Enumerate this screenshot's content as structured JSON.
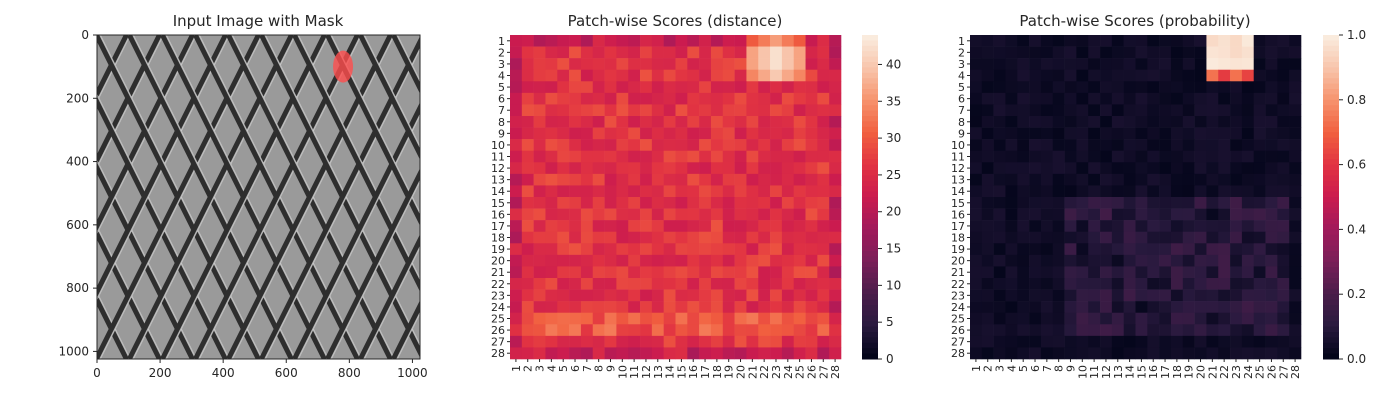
{
  "chart_data": [
    {
      "type": "image",
      "title": "Input Image with Mask",
      "xticks": [
        "0",
        "200",
        "400",
        "600",
        "800",
        "1000"
      ],
      "yticks": [
        "0",
        "200",
        "400",
        "600",
        "800",
        "1000"
      ],
      "xlim": [
        0,
        1024
      ],
      "ylim": [
        1024,
        0
      ],
      "mask": {
        "center": [
          780,
          100
        ],
        "label_color": "#ff4d4d"
      }
    },
    {
      "type": "heatmap",
      "title": "Patch-wise Scores (distance)",
      "rows": 28,
      "cols": 28,
      "row_labels": [
        "1",
        "2",
        "3",
        "4",
        "5",
        "6",
        "7",
        "8",
        "9",
        "10",
        "11",
        "12",
        "13",
        "14",
        "15",
        "16",
        "17",
        "18",
        "19",
        "20",
        "21",
        "22",
        "23",
        "24",
        "25",
        "26",
        "27",
        "28"
      ],
      "col_labels": [
        "1",
        "2",
        "3",
        "4",
        "5",
        "6",
        "7",
        "8",
        "9",
        "10",
        "11",
        "12",
        "13",
        "14",
        "15",
        "16",
        "17",
        "18",
        "19",
        "20",
        "21",
        "22",
        "23",
        "24",
        "25",
        "26",
        "27",
        "28"
      ],
      "vmin": 0,
      "vmax": 44,
      "colorbar_ticks": [
        "0",
        "5",
        "10",
        "15",
        "20",
        "25",
        "30",
        "35",
        "40"
      ],
      "colorbar_values": [
        0,
        5,
        10,
        15,
        20,
        25,
        30,
        35,
        40
      ],
      "hotspot": {
        "rows": [
          1,
          4
        ],
        "cols": [
          21,
          25
        ],
        "peak": 44
      },
      "approx_typical_value": 26
    },
    {
      "type": "heatmap",
      "title": "Patch-wise Scores (probability)",
      "rows": 28,
      "cols": 28,
      "row_labels": [
        "1",
        "2",
        "3",
        "4",
        "5",
        "6",
        "7",
        "8",
        "9",
        "10",
        "11",
        "12",
        "13",
        "14",
        "15",
        "16",
        "17",
        "18",
        "19",
        "20",
        "21",
        "22",
        "23",
        "24",
        "25",
        "26",
        "27",
        "28"
      ],
      "col_labels": [
        "1",
        "2",
        "3",
        "4",
        "5",
        "6",
        "7",
        "8",
        "9",
        "10",
        "11",
        "12",
        "13",
        "14",
        "15",
        "16",
        "17",
        "18",
        "19",
        "20",
        "21",
        "22",
        "23",
        "24",
        "25",
        "26",
        "27",
        "28"
      ],
      "vmin": 0.0,
      "vmax": 1.0,
      "colorbar_ticks": [
        "0.0",
        "0.2",
        "0.4",
        "0.6",
        "0.8",
        "1.0"
      ],
      "colorbar_values": [
        0.0,
        0.2,
        0.4,
        0.6,
        0.8,
        1.0
      ],
      "hotspot": {
        "rows": [
          1,
          4
        ],
        "cols": [
          21,
          24
        ],
        "peak": 1.0
      },
      "approx_typical_value": 0.03
    }
  ],
  "colors": {
    "rocket_stops": [
      "#03051a",
      "#2a1a3f",
      "#4c1d4b",
      "#7b1f59",
      "#a11a5b",
      "#cb1b4f",
      "#e13342",
      "#f15f3f",
      "#f6916b",
      "#f8c3a9",
      "#faebdd"
    ],
    "image_bg": "#9a9a9a",
    "mesh_dark": "#2e2e2e",
    "mesh_light": "#d8d8d8"
  }
}
